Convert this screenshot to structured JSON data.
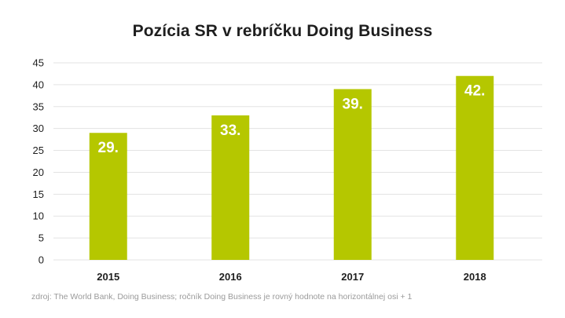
{
  "chart_data": {
    "type": "bar",
    "title": "Pozícia SR v rebríčku Doing Business",
    "categories": [
      "2015",
      "2016",
      "2017",
      "2018"
    ],
    "values": [
      29,
      33,
      39,
      42
    ],
    "data_labels": [
      "29.",
      "33.",
      "39.",
      "42."
    ],
    "xlabel": "",
    "ylabel": "",
    "ylim": [
      0,
      45
    ],
    "yticks": [
      0,
      5,
      10,
      15,
      20,
      25,
      30,
      35,
      40,
      45
    ],
    "grid": true,
    "legend": "none",
    "bar_color": "#b5c700",
    "grid_color": "#e3e3e3"
  },
  "source": "zdroj: The World Bank, Doing Business; ročník Doing Business je rovný hodnote na horizontálnej osi + 1"
}
